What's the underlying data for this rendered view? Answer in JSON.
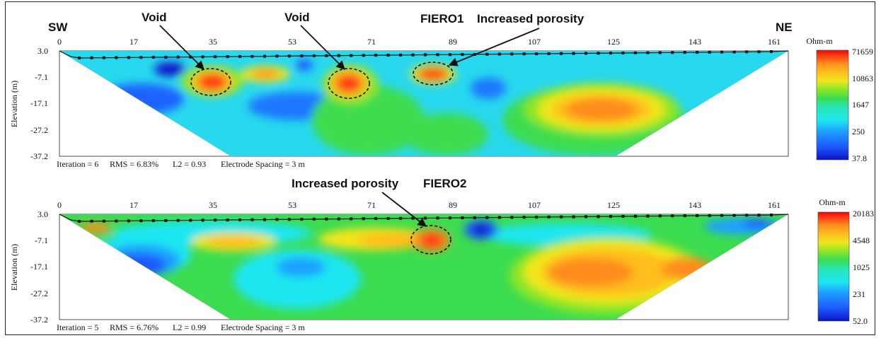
{
  "panels": [
    {
      "id": "top",
      "x_ticks": [
        "0",
        "17",
        "35",
        "53",
        "71",
        "89",
        "107",
        "125",
        "143",
        "161"
      ],
      "y_ticks": [
        "3.0",
        "-7.1",
        "-17.1",
        "-27.2",
        "-37.2"
      ],
      "y_label": "Elevation (m)",
      "footer": {
        "iteration": "Iteration = 6",
        "rms": "RMS = 6.83%",
        "l2": "L2 = 0.93",
        "spacing": "Electrode Spacing = 3 m"
      },
      "colorbar": {
        "unit": "Ohm-m",
        "labels": [
          "71659",
          "10863",
          "1647",
          "250",
          "37.8"
        ]
      },
      "annotations": {
        "sw": "SW",
        "ne": "NE",
        "void1": "Void",
        "void2": "Void",
        "fiero": "FIERO1",
        "porosity": "Increased porosity"
      }
    },
    {
      "id": "bottom",
      "x_ticks": [
        "0",
        "17",
        "35",
        "53",
        "71",
        "89",
        "107",
        "125",
        "143",
        "161"
      ],
      "y_ticks": [
        "3.0",
        "-7.1",
        "-17.1",
        "-27.2",
        "-37.2"
      ],
      "y_label": "Elevation (m)",
      "footer": {
        "iteration": "Iteration = 5",
        "rms": "RMS = 6.76%",
        "l2": "L2 = 0.99",
        "spacing": "Electrode Spacing = 3 m"
      },
      "colorbar": {
        "unit": "Ohm-m",
        "labels": [
          "20183",
          "4548",
          "1025",
          "231",
          "52.0"
        ]
      },
      "annotations": {
        "porosity": "Increased porosity",
        "fiero": "FIERO2"
      }
    }
  ],
  "colors": {
    "palette": [
      "#0a14c8",
      "#1e5aff",
      "#1ea0ff",
      "#1ee6f0",
      "#28e6b4",
      "#3cdc50",
      "#8ce628",
      "#f0e61e",
      "#ffbe1e",
      "#ff8c1e",
      "#ff3c14",
      "#e60a0a"
    ]
  }
}
